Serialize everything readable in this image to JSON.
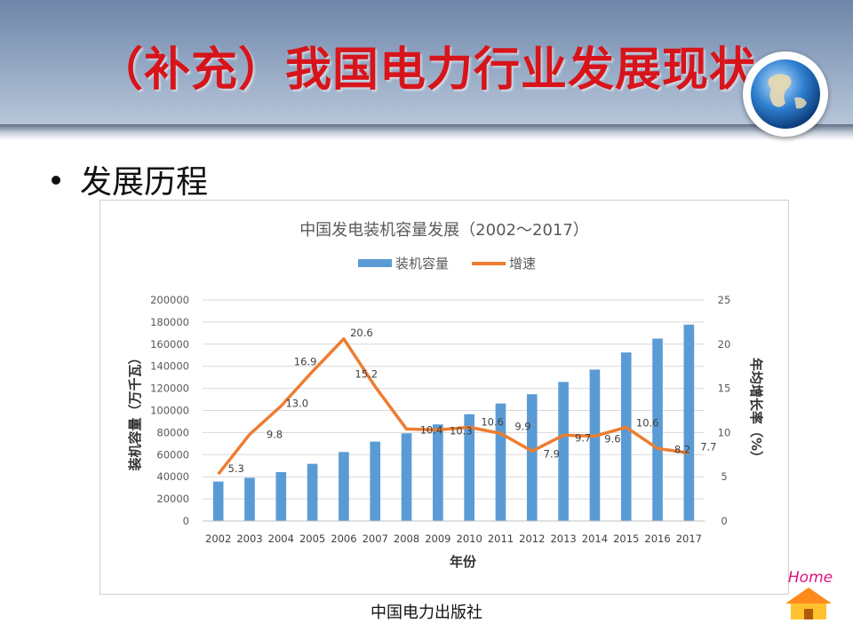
{
  "slide": {
    "title": "（补充）我国电力行业发展现状",
    "bullet": "发展历程",
    "footer": "中国电力出版社",
    "home_label": "Home"
  },
  "colors": {
    "bar": "#5b9bd5",
    "line": "#ed7d31",
    "title_red": "#d8141b"
  },
  "chart_data": {
    "type": "bar",
    "title": "中国发电装机容量发展（2002～2017）",
    "xlabel": "年份",
    "ylabel": "装机容量（万千瓦）",
    "y2label": "年均增长率（%）",
    "legend": [
      "装机容量",
      "增速"
    ],
    "legend_position": "top",
    "categories": [
      "2002",
      "2003",
      "2004",
      "2005",
      "2006",
      "2007",
      "2008",
      "2009",
      "2010",
      "2011",
      "2012",
      "2013",
      "2014",
      "2015",
      "2016",
      "2017"
    ],
    "series": [
      {
        "name": "装机容量",
        "type": "bar",
        "axis": "left",
        "values": [
          35700,
          39100,
          44200,
          51700,
          62400,
          71800,
          79300,
          87400,
          96600,
          106300,
          114700,
          125800,
          137000,
          152500,
          165000,
          177700
        ]
      },
      {
        "name": "增速",
        "type": "line",
        "axis": "right",
        "values": [
          5.3,
          9.8,
          13.0,
          16.9,
          20.6,
          15.2,
          10.4,
          10.3,
          10.6,
          9.9,
          7.9,
          9.7,
          9.6,
          10.6,
          8.2,
          7.7
        ],
        "labels": [
          "5.3",
          "9.8",
          "13.0",
          "16.9",
          "20.6",
          "15.2",
          "10.4",
          "10.3",
          "10.6",
          "9.9",
          "7.9",
          "9.7",
          "9.6",
          "10.6",
          "8.2",
          "7.7"
        ]
      }
    ],
    "ylim": [
      0,
      200000
    ],
    "yticks": [
      "0",
      "20000",
      "40000",
      "60000",
      "80000",
      "100000",
      "120000",
      "140000",
      "160000",
      "180000",
      "200000"
    ],
    "y2lim": [
      0,
      25
    ],
    "y2ticks": [
      "0",
      "5",
      "10",
      "15",
      "20",
      "25"
    ],
    "grid": true
  }
}
